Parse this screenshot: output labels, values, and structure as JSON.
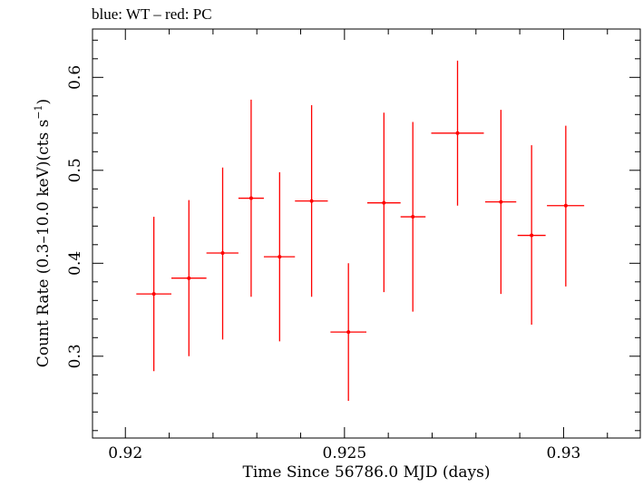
{
  "chart_data": {
    "type": "scatter",
    "title": "blue: WT – red: PC",
    "xlabel": "Time Since 56786.0 MJD (days)",
    "ylabel_main": "Count Rate (0.3–10.0 keV)(cts s",
    "ylabel_sup": "−1",
    "ylabel_end": ")",
    "xlim": [
      0.91925,
      0.93175
    ],
    "ylim": [
      0.212,
      0.652
    ],
    "x_ticks": [
      {
        "value": 0.92,
        "label": "0.92"
      },
      {
        "value": 0.925,
        "label": "0.925"
      },
      {
        "value": 0.93,
        "label": "0.93"
      }
    ],
    "y_ticks": [
      {
        "value": 0.3,
        "label": "0.3"
      },
      {
        "value": 0.4,
        "label": "0.4"
      },
      {
        "value": 0.5,
        "label": "0.5"
      },
      {
        "value": 0.6,
        "label": "0.6"
      }
    ],
    "series": [
      {
        "color": "#ff0000",
        "points": [
          {
            "x": 0.92065,
            "xlo": 0.92025,
            "xhi": 0.92105,
            "y": 0.367,
            "ylo": 0.284,
            "yhi": 0.45
          },
          {
            "x": 0.92145,
            "xlo": 0.92105,
            "xhi": 0.92185,
            "y": 0.384,
            "ylo": 0.3,
            "yhi": 0.468
          },
          {
            "x": 0.92222,
            "xlo": 0.92185,
            "xhi": 0.92258,
            "y": 0.411,
            "ylo": 0.318,
            "yhi": 0.503
          },
          {
            "x": 0.92287,
            "xlo": 0.92258,
            "xhi": 0.92316,
            "y": 0.47,
            "ylo": 0.364,
            "yhi": 0.576
          },
          {
            "x": 0.92352,
            "xlo": 0.92316,
            "xhi": 0.92387,
            "y": 0.407,
            "ylo": 0.316,
            "yhi": 0.498
          },
          {
            "x": 0.92425,
            "xlo": 0.92387,
            "xhi": 0.92462,
            "y": 0.467,
            "ylo": 0.364,
            "yhi": 0.57
          },
          {
            "x": 0.92509,
            "xlo": 0.92468,
            "xhi": 0.9255,
            "y": 0.326,
            "ylo": 0.252,
            "yhi": 0.4
          },
          {
            "x": 0.9259,
            "xlo": 0.92552,
            "xhi": 0.92628,
            "y": 0.465,
            "ylo": 0.369,
            "yhi": 0.562
          },
          {
            "x": 0.92656,
            "xlo": 0.92628,
            "xhi": 0.92685,
            "y": 0.45,
            "ylo": 0.348,
            "yhi": 0.552
          },
          {
            "x": 0.92758,
            "xlo": 0.92698,
            "xhi": 0.92818,
            "y": 0.54,
            "ylo": 0.462,
            "yhi": 0.618
          },
          {
            "x": 0.92857,
            "xlo": 0.92821,
            "xhi": 0.92892,
            "y": 0.466,
            "ylo": 0.367,
            "yhi": 0.565
          },
          {
            "x": 0.92927,
            "xlo": 0.92895,
            "xhi": 0.92959,
            "y": 0.43,
            "ylo": 0.334,
            "yhi": 0.527
          },
          {
            "x": 0.93005,
            "xlo": 0.92962,
            "xhi": 0.93047,
            "y": 0.462,
            "ylo": 0.375,
            "yhi": 0.548
          }
        ]
      }
    ]
  }
}
